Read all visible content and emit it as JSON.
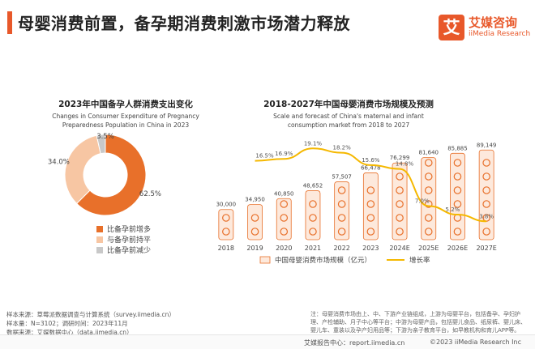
{
  "header": {
    "title": "母婴消费前置，备孕期消费刺激市场潜力释放",
    "logo_mark": "艾",
    "logo_cn": "艾媒咨询",
    "logo_en": "iiMedia Research"
  },
  "colors": {
    "orange": "#e8702a",
    "light_orange": "#f7c6a3",
    "gray": "#c8c8c8",
    "line": "#f5b800",
    "title_accent": "#e8582a"
  },
  "chart_data": [
    {
      "type": "pie",
      "title": "2023年中国备孕人群消费支出变化",
      "subtitle": "Changes in Consumer Expenditure of Pregnancy Preparedness Population in China in 2023",
      "slices": [
        {
          "label": "比备孕前增多",
          "value": 62.5,
          "display": "62.5%"
        },
        {
          "label": "与备孕前持平",
          "value": 34.0,
          "display": "34.0%"
        },
        {
          "label": "比备孕前减少",
          "value": 3.5,
          "display": "3.5%"
        }
      ],
      "donut": true,
      "legend_position": "bottom-left"
    },
    {
      "type": "bar",
      "title": "2018-2027年中国母婴消费市场规模及预测",
      "subtitle": "Scale and forecast of China's maternal and infant consumption market from 2018 to 2027",
      "categories": [
        "2018",
        "2019",
        "2020",
        "2021",
        "2022",
        "2023",
        "2024E",
        "2025E",
        "2026E",
        "2027E"
      ],
      "series": [
        {
          "name": "中国母婴消费市场规模（亿元）",
          "type": "bar",
          "values": [
            30000,
            34950,
            40850,
            48652,
            57507,
            66478,
            76299,
            81640,
            85885,
            89149
          ],
          "labels": [
            "30,000",
            "34,950",
            "40,850",
            "48,652",
            "57,507",
            "66,478",
            "76,299",
            "81,640",
            "85,885",
            "89,149"
          ]
        },
        {
          "name": "增长率",
          "type": "line",
          "values": [
            null,
            16.5,
            16.9,
            19.1,
            18.2,
            15.6,
            14.8,
            7.0,
            5.2,
            3.8
          ],
          "labels": [
            "",
            "16.5%",
            "16.9%",
            "19.1%",
            "18.2%",
            "15.6%",
            "14.8%",
            "7.0%",
            "5.2%",
            "3.8%"
          ]
        }
      ],
      "legend_position": "bottom",
      "grid": false
    }
  ],
  "footer": {
    "source1": "样本来源：草莓派数据调查与计算系统（survey.iimedia.cn）",
    "source2": "样本量：N=3102；调研时间：2023年11月",
    "source3": "数据来源：艾媒数据中心（data.iimedia.cn）",
    "note": "注：母婴消费市场由上、中、下游产业链组成，上游为母婴平台，包括备孕、孕妇护理、产检辅助、月子中心等平台；中游为母婴产品，包括婴儿食品、纸尿裤、婴儿床、婴儿车、童装以及孕产妇用品等；下游为亲子教育平台，如早教机构和育儿APP等。",
    "site": "艾媒报告中心：report.iimedia.cn",
    "copyright": "©2023  iiMedia Research  Inc"
  }
}
